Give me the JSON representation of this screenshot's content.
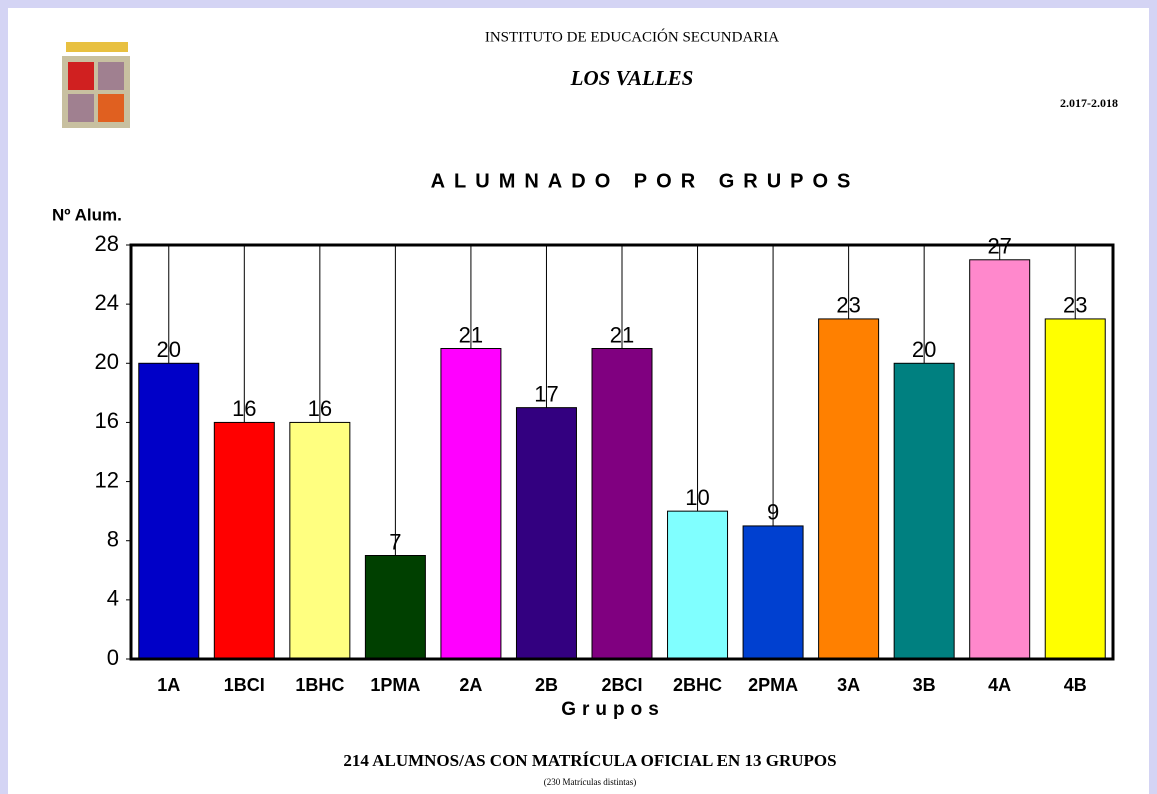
{
  "header": {
    "school_type": "INSTITUTO DE EDUCACIÓN SECUNDARIA",
    "school_name": "LOS VALLES",
    "year": "2.017-2.018"
  },
  "chart_data": {
    "type": "bar",
    "title": "ALUMNADO POR GRUPOS",
    "y_label": "Nº Alum.",
    "x_label": "Grupos",
    "categories": [
      "1A",
      "1BCI",
      "1BHC",
      "1PMA",
      "2A",
      "2B",
      "2BCI",
      "2BHC",
      "2PMA",
      "3A",
      "3B",
      "4A",
      "4B"
    ],
    "values": [
      20,
      16,
      16,
      7,
      21,
      17,
      21,
      10,
      9,
      23,
      20,
      27,
      23
    ],
    "colors": [
      "#0000c8",
      "#ff0000",
      "#ffff80",
      "#004000",
      "#ff00ff",
      "#330080",
      "#800080",
      "#80ffff",
      "#0040d0",
      "#ff8000",
      "#008080",
      "#ff88cc",
      "#ffff00"
    ],
    "ylim": [
      0,
      28
    ],
    "yticks": [
      0,
      4,
      8,
      12,
      16,
      20,
      24,
      28
    ],
    "grid": true
  },
  "footer": {
    "summary": "214  ALUMNOS/AS CON MATRÍCULA OFICIAL EN 13 GRUPOS",
    "note": "(230  Matrículas distintas)"
  }
}
